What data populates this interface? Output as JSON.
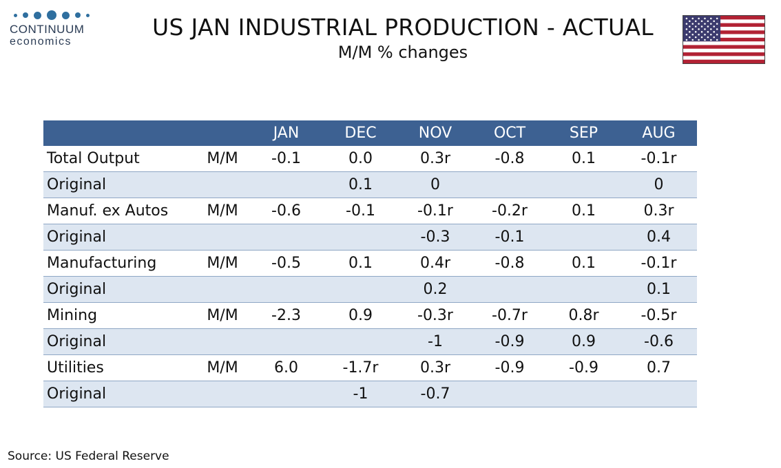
{
  "brand": {
    "name": "CONTINUUM",
    "sub": "economics"
  },
  "header": {
    "title": "US JAN INDUSTRIAL PRODUCTION - ACTUAL",
    "subtitle": "M/M % changes"
  },
  "colors": {
    "header_bg": "#3d6192",
    "alt_row_bg": "#dde6f1",
    "flag_red": "#b22234",
    "flag_blue": "#3c3b6e",
    "logo_accent": "#2f6f9f"
  },
  "icons": {
    "flag": "us-flag-icon",
    "logo": "continuum-logo-icon"
  },
  "table": {
    "columns": [
      "",
      "",
      "JAN",
      "DEC",
      "NOV",
      "OCT",
      "SEP",
      "AUG"
    ],
    "rows": [
      {
        "label": "Total Output",
        "unit": "M/M",
        "values": [
          "-0.1",
          "0.0",
          "0.3r",
          "-0.8",
          "0.1",
          "-0.1r"
        ]
      },
      {
        "label": "Original",
        "unit": "",
        "values": [
          "",
          "0.1",
          "0",
          "",
          "",
          "0"
        ]
      },
      {
        "label": "Manuf. ex Autos",
        "unit": "M/M",
        "values": [
          "-0.6",
          "-0.1",
          "-0.1r",
          "-0.2r",
          "0.1",
          "0.3r"
        ]
      },
      {
        "label": "Original",
        "unit": "",
        "values": [
          "",
          "",
          "-0.3",
          "-0.1",
          "",
          "0.4"
        ]
      },
      {
        "label": "Manufacturing",
        "unit": "M/M",
        "values": [
          "-0.5",
          "0.1",
          "0.4r",
          "-0.8",
          "0.1",
          "-0.1r"
        ]
      },
      {
        "label": "Original",
        "unit": "",
        "values": [
          "",
          "",
          "0.2",
          "",
          "",
          "0.1"
        ]
      },
      {
        "label": "Mining",
        "unit": "M/M",
        "values": [
          "-2.3",
          "0.9",
          "-0.3r",
          "-0.7r",
          "0.8r",
          "-0.5r"
        ]
      },
      {
        "label": "Original",
        "unit": "",
        "values": [
          "",
          "",
          "-1",
          "-0.9",
          "0.9",
          "-0.6"
        ]
      },
      {
        "label": "Utilities",
        "unit": "M/M",
        "values": [
          "6.0",
          "-1.7r",
          "0.3r",
          "-0.9",
          "-0.9",
          "0.7"
        ]
      },
      {
        "label": "Original",
        "unit": "",
        "values": [
          "",
          "-1",
          "-0.7",
          "",
          "",
          ""
        ]
      }
    ]
  },
  "footer": {
    "source": "Source: US Federal Reserve"
  }
}
